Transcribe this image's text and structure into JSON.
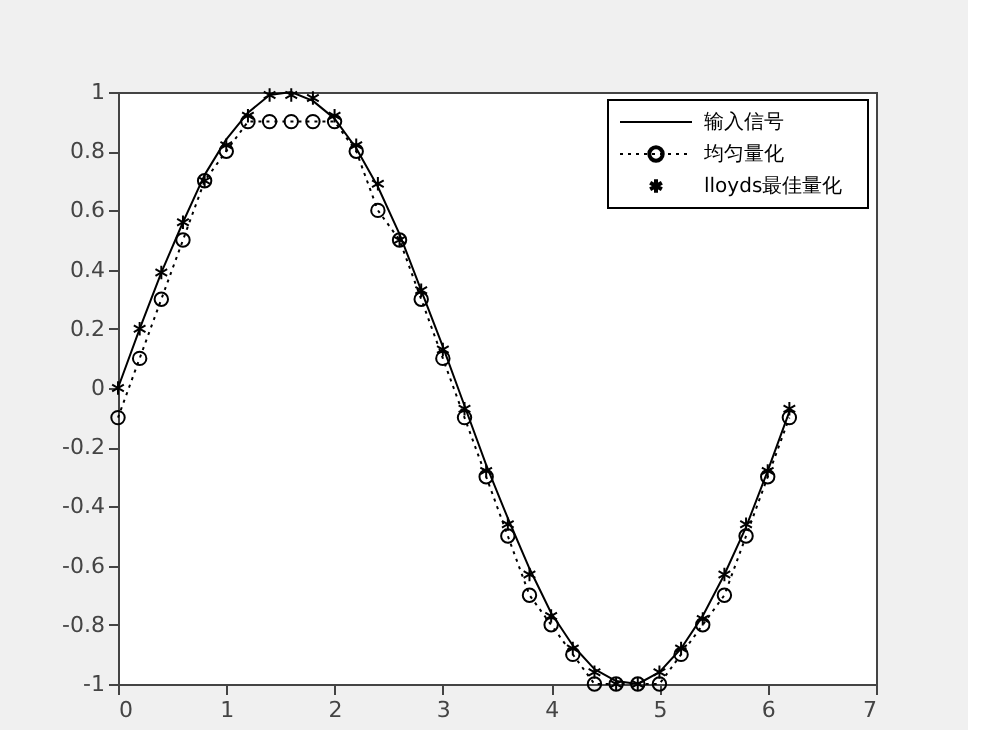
{
  "chart_data": {
    "type": "line",
    "x": [
      0,
      0.2,
      0.4,
      0.6,
      0.8,
      1.0,
      1.2,
      1.4,
      1.6,
      1.8,
      2.0,
      2.2,
      2.4,
      2.6,
      2.8,
      3.0,
      3.2,
      3.4,
      3.6,
      3.8,
      4.0,
      4.2,
      4.4,
      4.6,
      4.8,
      5.0,
      5.2,
      5.4,
      5.6,
      5.8,
      6.0,
      6.2
    ],
    "xlim": [
      0,
      7
    ],
    "xticks": [
      0,
      1,
      2,
      3,
      4,
      5,
      6,
      7
    ],
    "ylim": [
      -1,
      1
    ],
    "yticks": [
      -1,
      -0.8,
      -0.6,
      -0.4,
      -0.2,
      0,
      0.2,
      0.4,
      0.6,
      0.8,
      1
    ],
    "grid": false,
    "legend": "top right",
    "series": [
      {
        "name": "输入信号",
        "color": "#000000",
        "marker": "none",
        "line_style": "solid",
        "values": [
          0,
          0.2,
          0.39,
          0.56,
          0.72,
          0.84,
          0.93,
          0.99,
          1.0,
          0.97,
          0.91,
          0.81,
          0.68,
          0.52,
          0.33,
          0.14,
          -0.06,
          -0.26,
          -0.44,
          -0.61,
          -0.76,
          -0.87,
          -0.95,
          -0.99,
          -1.0,
          -0.96,
          -0.88,
          -0.77,
          -0.63,
          -0.47,
          -0.28,
          -0.08
        ]
      },
      {
        "name": "均匀量化",
        "color": "#000000",
        "marker": "circle",
        "line_style": "dotted",
        "values": [
          -0.1,
          0.1,
          0.3,
          0.5,
          0.7,
          0.8,
          0.9,
          0.9,
          0.9,
          0.9,
          0.9,
          0.8,
          0.6,
          0.5,
          0.3,
          0.1,
          -0.1,
          -0.3,
          -0.5,
          -0.7,
          -0.8,
          -0.9,
          -1.0,
          -1.0,
          -1.0,
          -1.0,
          -0.9,
          -0.8,
          -0.7,
          -0.5,
          -0.3,
          -0.1
        ]
      },
      {
        "name": "lloyds最佳量化",
        "type": "scatter",
        "color": "#000000",
        "marker": "cross",
        "values": [
          0,
          0.2,
          0.39,
          0.56,
          0.7,
          0.82,
          0.92,
          0.99,
          0.99,
          0.98,
          0.92,
          0.82,
          0.69,
          0.5,
          0.33,
          0.13,
          -0.07,
          -0.28,
          -0.46,
          -0.63,
          -0.77,
          -0.88,
          -0.96,
          -1.0,
          -1.0,
          -0.96,
          -0.88,
          -0.78,
          -0.63,
          -0.46,
          -0.28,
          -0.07
        ]
      }
    ]
  }
}
